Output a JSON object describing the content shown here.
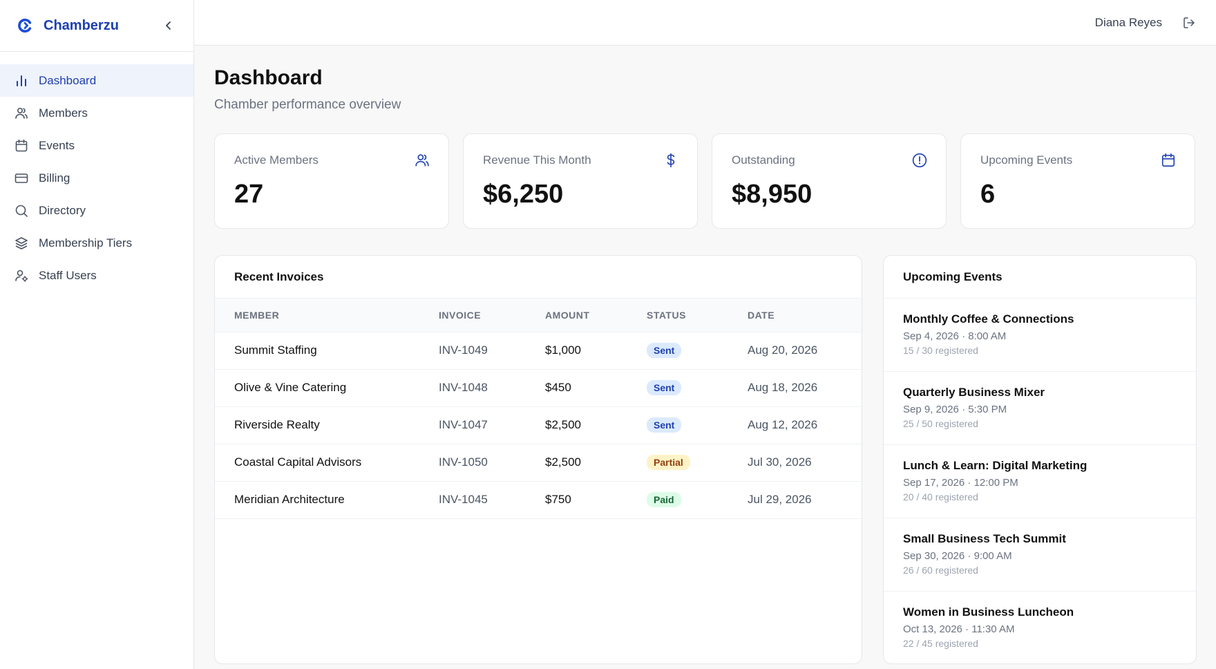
{
  "brand": {
    "name": "Chamberzu",
    "accent": "#1e40af",
    "logo_icon": "chamberzu-logo-icon",
    "collapse_icon": "chevron-left-icon"
  },
  "sidebar": {
    "items": [
      {
        "label": "Dashboard",
        "icon": "bar-chart-icon",
        "active": true
      },
      {
        "label": "Members",
        "icon": "users-icon"
      },
      {
        "label": "Events",
        "icon": "calendar-icon"
      },
      {
        "label": "Billing",
        "icon": "credit-card-icon"
      },
      {
        "label": "Directory",
        "icon": "search-icon"
      },
      {
        "label": "Membership Tiers",
        "icon": "layers-icon"
      },
      {
        "label": "Staff Users",
        "icon": "user-cog-icon"
      }
    ]
  },
  "topbar": {
    "user_name": "Diana Reyes",
    "logout_icon": "logout-icon"
  },
  "page": {
    "title": "Dashboard",
    "subtitle": "Chamber performance overview"
  },
  "stats": [
    {
      "label": "Active Members",
      "value": "27",
      "icon": "users-icon"
    },
    {
      "label": "Revenue This Month",
      "value": "$6,250",
      "icon": "dollar-icon"
    },
    {
      "label": "Outstanding",
      "value": "$8,950",
      "icon": "alert-circle-icon"
    },
    {
      "label": "Upcoming Events",
      "value": "6",
      "icon": "calendar-icon"
    }
  ],
  "invoices": {
    "title": "Recent Invoices",
    "columns": [
      "MEMBER",
      "INVOICE",
      "AMOUNT",
      "STATUS",
      "DATE"
    ],
    "rows": [
      {
        "member": "Summit Staffing",
        "invoice": "INV-1049",
        "amount": "$1,000",
        "status": "Sent",
        "date": "Aug 20, 2026"
      },
      {
        "member": "Olive & Vine Catering",
        "invoice": "INV-1048",
        "amount": "$450",
        "status": "Sent",
        "date": "Aug 18, 2026"
      },
      {
        "member": "Riverside Realty",
        "invoice": "INV-1047",
        "amount": "$2,500",
        "status": "Sent",
        "date": "Aug 12, 2026"
      },
      {
        "member": "Coastal Capital Advisors",
        "invoice": "INV-1050",
        "amount": "$2,500",
        "status": "Partial",
        "date": "Jul 30, 2026"
      },
      {
        "member": "Meridian Architecture",
        "invoice": "INV-1045",
        "amount": "$750",
        "status": "Paid",
        "date": "Jul 29, 2026"
      }
    ]
  },
  "events": {
    "title": "Upcoming Events",
    "items": [
      {
        "title": "Monthly Coffee & Connections",
        "date": "Sep 4, 2026 · 8:00 AM",
        "registered": "15 / 30 registered"
      },
      {
        "title": "Quarterly Business Mixer",
        "date": "Sep 9, 2026 · 5:30 PM",
        "registered": "25 / 50 registered"
      },
      {
        "title": "Lunch & Learn: Digital Marketing",
        "date": "Sep 17, 2026 · 12:00 PM",
        "registered": "20 / 40 registered"
      },
      {
        "title": "Small Business Tech Summit",
        "date": "Sep 30, 2026 · 9:00 AM",
        "registered": "26 / 60 registered"
      },
      {
        "title": "Women in Business Luncheon",
        "date": "Oct 13, 2026 · 11:30 AM",
        "registered": "22 / 45 registered"
      }
    ]
  },
  "colors": {
    "sent": "#dbeafe",
    "partial": "#fef3c7",
    "paid": "#dcfce7"
  }
}
